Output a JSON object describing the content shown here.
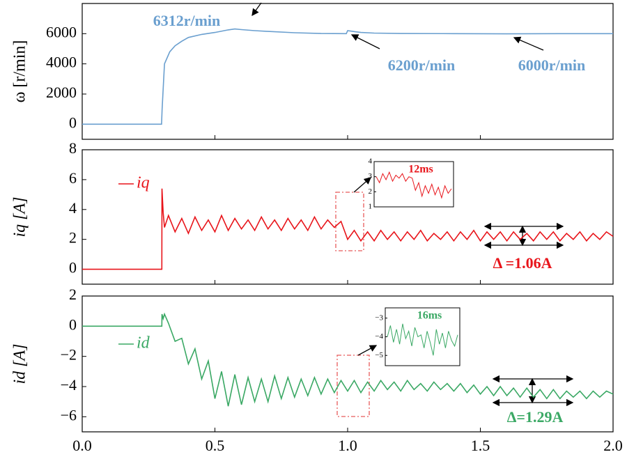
{
  "chart_data": [
    {
      "type": "line",
      "ylabel": "ω [r/min]",
      "x": [
        0,
        0.299,
        0.301,
        0.31,
        0.32,
        0.33,
        0.35,
        0.375,
        0.4,
        0.45,
        0.5,
        0.55,
        0.575,
        0.6,
        0.65,
        0.7,
        0.8,
        0.9,
        0.995,
        1.0,
        1.02,
        1.05,
        1.1,
        1.2,
        1.4,
        1.6,
        1.8,
        2.0
      ],
      "series": [
        {
          "color": "#6a9fcf",
          "values": [
            0,
            0,
            1000,
            4000,
            4400,
            4800,
            5200,
            5500,
            5750,
            5950,
            6080,
            6250,
            6312,
            6270,
            6200,
            6150,
            6060,
            6010,
            6000,
            6200,
            6150,
            6080,
            6040,
            6010,
            6000,
            5990,
            6000,
            6000
          ]
        }
      ],
      "xlim": [
        0,
        2
      ],
      "ylim": [
        -1000,
        8000
      ],
      "yticks": [
        0,
        2000,
        4000,
        6000
      ],
      "annotations": [
        "6312r/min",
        "6200r/min",
        "6000r/min"
      ]
    },
    {
      "type": "line",
      "ylabel": "iq [A]",
      "x": [
        0,
        0.3,
        0.3005,
        0.305,
        0.31,
        0.325,
        0.35,
        0.375,
        0.4,
        0.425,
        0.45,
        0.475,
        0.5,
        0.525,
        0.55,
        0.575,
        0.6,
        0.625,
        0.65,
        0.675,
        0.7,
        0.725,
        0.75,
        0.775,
        0.8,
        0.825,
        0.85,
        0.875,
        0.9,
        0.925,
        0.95,
        0.975,
        1.0,
        1.025,
        1.05,
        1.075,
        1.1,
        1.125,
        1.15,
        1.175,
        1.2,
        1.225,
        1.25,
        1.275,
        1.3,
        1.325,
        1.35,
        1.375,
        1.4,
        1.425,
        1.45,
        1.475,
        1.5,
        1.525,
        1.55,
        1.575,
        1.6,
        1.625,
        1.65,
        1.675,
        1.7,
        1.725,
        1.75,
        1.775,
        1.8,
        1.825,
        1.85,
        1.875,
        1.9,
        1.925,
        1.95,
        1.975,
        2.0
      ],
      "series": [
        {
          "name": "iq",
          "color": "#e8141a",
          "values": [
            0,
            0,
            5.4,
            3.8,
            2.8,
            3.6,
            2.5,
            3.4,
            2.4,
            3.5,
            2.6,
            3.3,
            2.5,
            3.6,
            2.6,
            3.4,
            2.7,
            3.3,
            2.6,
            3.5,
            2.7,
            3.3,
            2.6,
            3.4,
            2.7,
            3.3,
            2.6,
            3.5,
            2.7,
            3.3,
            2.8,
            3.2,
            2.0,
            2.6,
            1.9,
            2.5,
            1.9,
            2.6,
            2.0,
            2.5,
            1.9,
            2.5,
            2.0,
            2.6,
            1.9,
            2.4,
            2.0,
            2.5,
            1.9,
            2.5,
            2.0,
            2.6,
            1.9,
            2.5,
            2.0,
            2.5,
            1.9,
            2.5,
            2.0,
            2.4,
            1.9,
            2.5,
            2.0,
            2.5,
            1.9,
            2.4,
            2.0,
            2.5,
            1.9,
            2.4,
            2.0,
            2.5,
            2.2
          ]
        }
      ],
      "xlim": [
        0,
        2
      ],
      "ylim": [
        -1,
        8
      ],
      "yticks": [
        0,
        2,
        4,
        6,
        8
      ],
      "annotations": [
        "Δ =1.06A"
      ],
      "inset": {
        "values": [
          3.0,
          2.6,
          3.2,
          2.8,
          3.3,
          2.7,
          3.1,
          2.9,
          3.2,
          2.7,
          3.0,
          2.9,
          2.1,
          2.6,
          1.7,
          2.4,
          1.9,
          2.5,
          1.8,
          2.3,
          1.6,
          2.4,
          1.9,
          2.2
        ],
        "ylim": [
          1,
          4
        ],
        "yticks": [
          1,
          2,
          3,
          4
        ],
        "annotation": "12ms"
      }
    },
    {
      "type": "line",
      "ylabel": "id [A]",
      "x": [
        0,
        0.3,
        0.3005,
        0.305,
        0.31,
        0.325,
        0.35,
        0.375,
        0.4,
        0.425,
        0.45,
        0.475,
        0.5,
        0.525,
        0.55,
        0.575,
        0.6,
        0.625,
        0.65,
        0.675,
        0.7,
        0.725,
        0.75,
        0.775,
        0.8,
        0.825,
        0.85,
        0.875,
        0.9,
        0.925,
        0.95,
        0.975,
        1.0,
        1.025,
        1.05,
        1.075,
        1.1,
        1.125,
        1.15,
        1.175,
        1.2,
        1.225,
        1.25,
        1.275,
        1.3,
        1.325,
        1.35,
        1.375,
        1.4,
        1.425,
        1.45,
        1.475,
        1.5,
        1.525,
        1.55,
        1.575,
        1.6,
        1.625,
        1.65,
        1.675,
        1.7,
        1.725,
        1.75,
        1.775,
        1.8,
        1.825,
        1.85,
        1.875,
        1.9,
        1.925,
        1.95,
        1.975,
        2.0
      ],
      "series": [
        {
          "name": "id",
          "color": "#3aa864",
          "values": [
            0,
            0,
            0.8,
            0.5,
            0.8,
            0.2,
            -1.0,
            -0.8,
            -2.5,
            -1.5,
            -3.5,
            -2.3,
            -4.8,
            -3.0,
            -5.3,
            -3.2,
            -5.2,
            -3.4,
            -5.0,
            -3.5,
            -5.0,
            -3.3,
            -4.8,
            -3.4,
            -4.7,
            -3.5,
            -4.6,
            -3.4,
            -4.5,
            -3.5,
            -4.4,
            -3.6,
            -4.3,
            -3.6,
            -4.4,
            -3.7,
            -4.3,
            -3.6,
            -4.2,
            -3.7,
            -4.3,
            -3.6,
            -4.2,
            -3.8,
            -4.3,
            -3.7,
            -4.2,
            -3.8,
            -4.3,
            -3.8,
            -4.4,
            -3.9,
            -4.5,
            -4.0,
            -4.6,
            -4.0,
            -4.6,
            -4.1,
            -4.7,
            -4.1,
            -4.7,
            -4.2,
            -4.8,
            -4.2,
            -4.8,
            -4.3,
            -4.7,
            -4.3,
            -4.8,
            -4.3,
            -4.7,
            -4.3,
            -4.5
          ]
        }
      ],
      "xlim": [
        0,
        2
      ],
      "ylim": [
        -7,
        2
      ],
      "yticks": [
        2,
        0,
        {
          "value": -2,
          "label": "−2"
        },
        {
          "value": -4,
          "label": "−4"
        },
        {
          "value": -6,
          "label": "−6"
        }
      ],
      "xticks": [
        {
          "value": 0,
          "label": "0.0"
        },
        0.5,
        {
          "value": 1,
          "label": "1.0"
        },
        1.5,
        {
          "value": 2,
          "label": "2.0"
        }
      ],
      "annotations": [
        "Δ=1.29A"
      ],
      "inset": {
        "values": [
          -4.0,
          -3.4,
          -4.3,
          -3.6,
          -4.4,
          -3.3,
          -4.1,
          -3.7,
          -4.5,
          -3.5,
          -4.0,
          -3.9,
          -4.6,
          -3.7,
          -4.3,
          -5.0,
          -3.6,
          -4.4,
          -3.8,
          -4.6,
          -3.7,
          -4.2,
          -4.5,
          -3.9
        ],
        "ylim": [
          -5.55,
          -2.45
        ],
        "yticks": [
          {
            "value": -3,
            "label": "−3"
          },
          {
            "value": -4,
            "label": "−4"
          },
          {
            "value": -5,
            "label": "−5"
          }
        ],
        "annotation": "16ms"
      }
    }
  ]
}
